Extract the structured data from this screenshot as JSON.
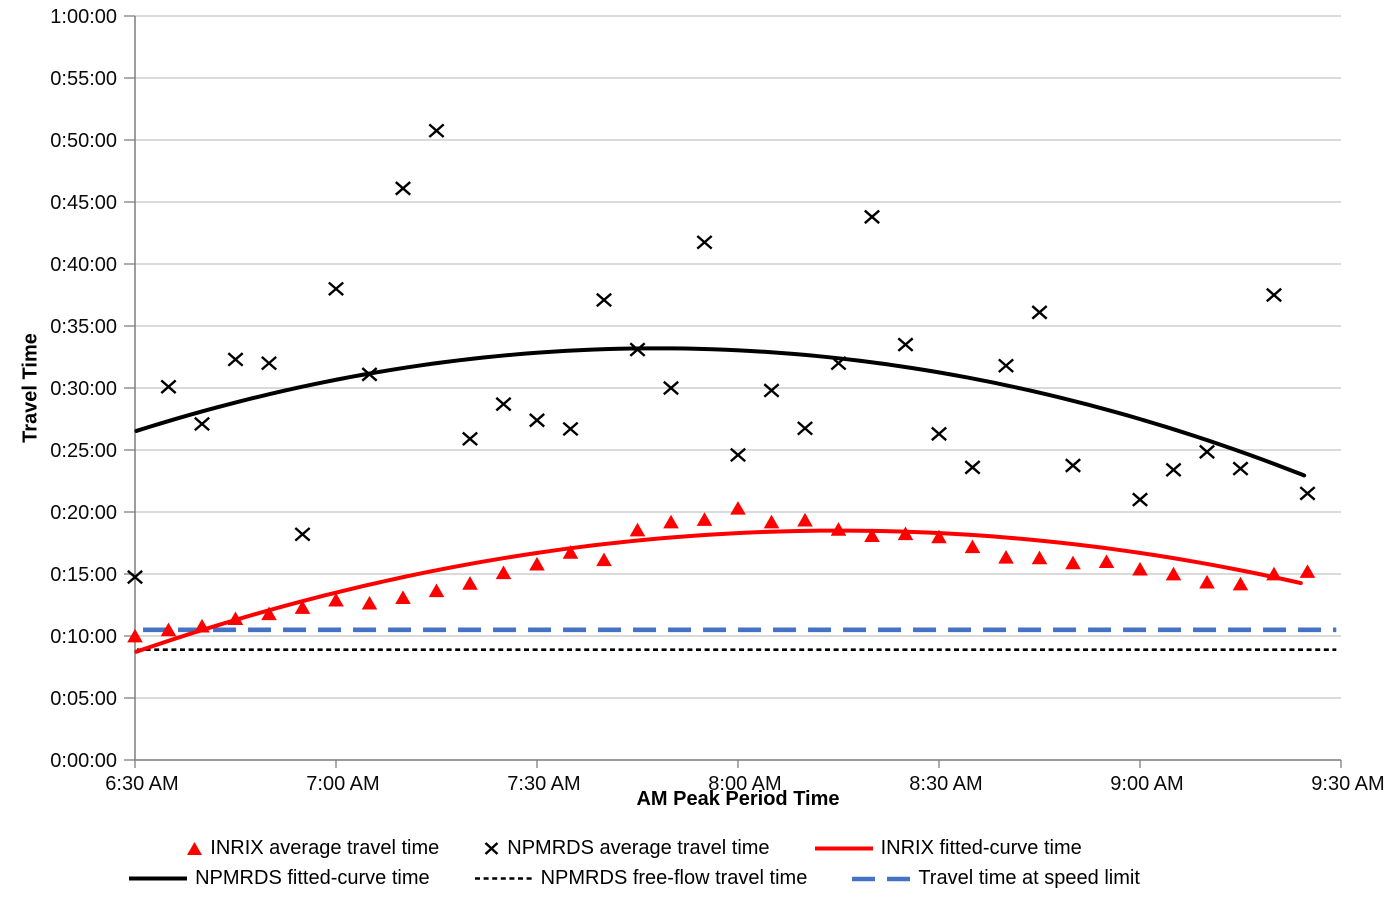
{
  "page": {
    "background": "#FFFFFF"
  },
  "axes": {
    "x_title": "AM Peak Period Time",
    "y_title": "Travel Time"
  },
  "chart_data": {
    "type": "scatter",
    "title": "",
    "xlabel": "AM Peak Period Time",
    "ylabel": "Travel Time",
    "x_unit": "minutes after 6:30 AM",
    "y_unit": "travel time in minutes",
    "x_range": [
      0,
      180
    ],
    "y_range": [
      0,
      60
    ],
    "grid": "horizontal-only",
    "legend_position": "bottom",
    "style": {
      "grid": "#C4C4C4",
      "axis": "#7F7F7F",
      "text": "#000000",
      "background": "#FFFFFF"
    },
    "x_ticks": [
      {
        "t": 0,
        "label": "6:30 AM"
      },
      {
        "t": 30,
        "label": "7:00 AM"
      },
      {
        "t": 60,
        "label": "7:30 AM"
      },
      {
        "t": 90,
        "label": "8:00 AM"
      },
      {
        "t": 120,
        "label": "8:30 AM"
      },
      {
        "t": 150,
        "label": "9:00 AM"
      },
      {
        "t": 180,
        "label": "9:30 AM"
      }
    ],
    "y_ticks": [
      {
        "v": 0,
        "label": "0:00:00"
      },
      {
        "v": 5,
        "label": "0:05:00"
      },
      {
        "v": 10,
        "label": "0:10:00"
      },
      {
        "v": 15,
        "label": "0:15:00"
      },
      {
        "v": 20,
        "label": "0:20:00"
      },
      {
        "v": 25,
        "label": "0:25:00"
      },
      {
        "v": 30,
        "label": "0:30:00"
      },
      {
        "v": 35,
        "label": "0:35:00"
      },
      {
        "v": 40,
        "label": "0:40:00"
      },
      {
        "v": 45,
        "label": "0:45:00"
      },
      {
        "v": 50,
        "label": "0:50:00"
      },
      {
        "v": 55,
        "label": "0:55:00"
      },
      {
        "v": 60,
        "label": "1:00:00"
      }
    ],
    "series": [
      {
        "key": "inrix_avg",
        "name": "INRIX average travel time",
        "type": "scatter",
        "marker": "triangle",
        "color": "#FF0000",
        "t_start": 0,
        "t_step": 5,
        "values": [
          10.0,
          10.5,
          10.8,
          11.4,
          11.8,
          12.3,
          12.9,
          12.65,
          13.1,
          13.65,
          14.25,
          15.1,
          15.8,
          16.75,
          16.15,
          18.55,
          19.2,
          19.4,
          20.3,
          19.2,
          19.35,
          18.6,
          18.1,
          18.25,
          18.0,
          17.2,
          16.35,
          16.3,
          15.9,
          16.0,
          15.4,
          15.0,
          14.35,
          14.2,
          15.0,
          15.2
        ]
      },
      {
        "key": "npmrds_avg",
        "name": "NPMRDS average travel time",
        "type": "scatter",
        "marker": "x",
        "color": "#000000",
        "t_start": 0,
        "t_step": 5,
        "values": [
          14.75,
          30.1,
          27.1,
          32.3,
          32.0,
          18.2,
          38.0,
          31.1,
          46.1,
          50.75,
          25.9,
          28.7,
          27.4,
          26.7,
          37.1,
          33.1,
          30.0,
          41.75,
          24.6,
          29.8,
          26.75,
          32.0,
          43.8,
          33.5,
          26.3,
          23.6,
          31.8,
          36.1,
          23.75,
          null,
          21.0,
          23.4,
          24.85,
          23.5,
          37.5,
          21.5
        ]
      },
      {
        "key": "inrix_fit",
        "name": "INRIX fitted-curve time",
        "type": "curve",
        "color": "#FF0000",
        "quad": {
          "a": -0.000889,
          "tv": 105,
          "vv": 18.5
        },
        "t_start": 0.2,
        "t_end": 174.0
      },
      {
        "key": "npmrds_fit",
        "name": "NPMRDS fitted-curve time",
        "type": "curve",
        "color": "#000000",
        "quad": {
          "a": -0.001101,
          "tv": 78,
          "vv": 33.2
        },
        "t_start": 0.2,
        "t_end": 174.5
      },
      {
        "key": "npmrds_freeflow",
        "name": "NPMRDS free-flow travel time",
        "type": "hline",
        "color": "#000000",
        "dash": "short",
        "value": 8.9,
        "t_start": 0.3,
        "t_end": 179.3
      },
      {
        "key": "speed_limit",
        "name": "Travel time at speed limit",
        "type": "hline",
        "color": "#4472C4",
        "dash": "long",
        "value": 10.5,
        "t_start": 1.2,
        "t_end": 179.3
      }
    ]
  }
}
